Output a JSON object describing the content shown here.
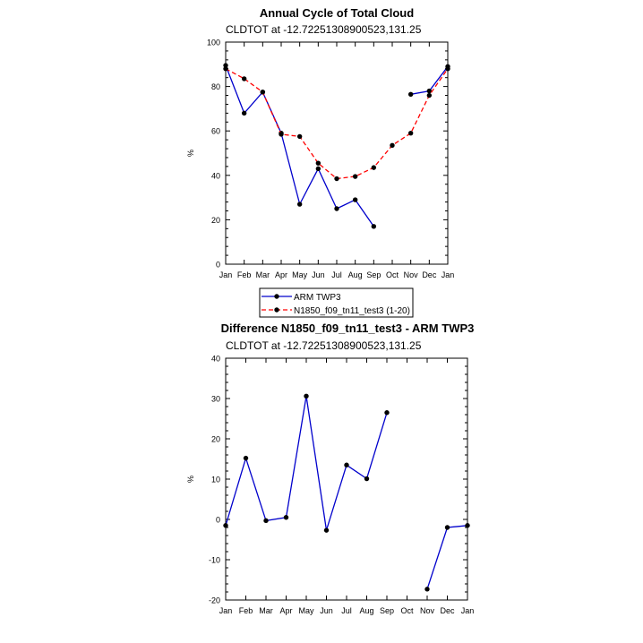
{
  "chart_data": [
    {
      "type": "line",
      "title": "Annual Cycle of Total Cloud",
      "subtitle": "CLDTOT at -12.72251308900523,131.25",
      "ylabel": "%",
      "xlabel": "",
      "ylim": [
        0,
        100
      ],
      "yticks": [
        0,
        20,
        40,
        60,
        80,
        100
      ],
      "categories": [
        "Jan",
        "Feb",
        "Mar",
        "Apr",
        "May",
        "Jun",
        "Jul",
        "Aug",
        "Sep",
        "Oct",
        "Nov",
        "Dec",
        "Jan"
      ],
      "series": [
        {
          "name": "ARM TWP3",
          "color": "#0000cc",
          "dash": "solid",
          "values": [
            89.5,
            68,
            77.5,
            59,
            27,
            43,
            25,
            29,
            17,
            null,
            76.5,
            78,
            89
          ]
        },
        {
          "name": "N1850_f09_tn11_test3 (1-20)",
          "color": "#ff0000",
          "dash": "dashed",
          "values": [
            88,
            83.5,
            77.5,
            58.5,
            57.5,
            45.5,
            38.5,
            39.5,
            43.5,
            53.5,
            59,
            76,
            88
          ]
        }
      ]
    },
    {
      "type": "line",
      "title": "Difference N1850_f09_tn11_test3 - ARM TWP3",
      "subtitle": "CLDTOT at -12.72251308900523,131.25",
      "ylabel": "%",
      "xlabel": "",
      "ylim": [
        -20,
        40
      ],
      "yticks": [
        -20,
        -10,
        0,
        10,
        20,
        30,
        40
      ],
      "categories": [
        "Jan",
        "Feb",
        "Mar",
        "Apr",
        "May",
        "Jun",
        "Jul",
        "Aug",
        "Sep",
        "Oct",
        "Nov",
        "Dec",
        "Jan"
      ],
      "series": [
        {
          "name": "Difference",
          "color": "#0000cc",
          "dash": "solid",
          "values": [
            -1.5,
            15.2,
            -0.3,
            0.5,
            30.6,
            -2.7,
            13.5,
            10.1,
            26.5,
            null,
            -17.3,
            -2,
            -1.5
          ]
        }
      ]
    }
  ]
}
